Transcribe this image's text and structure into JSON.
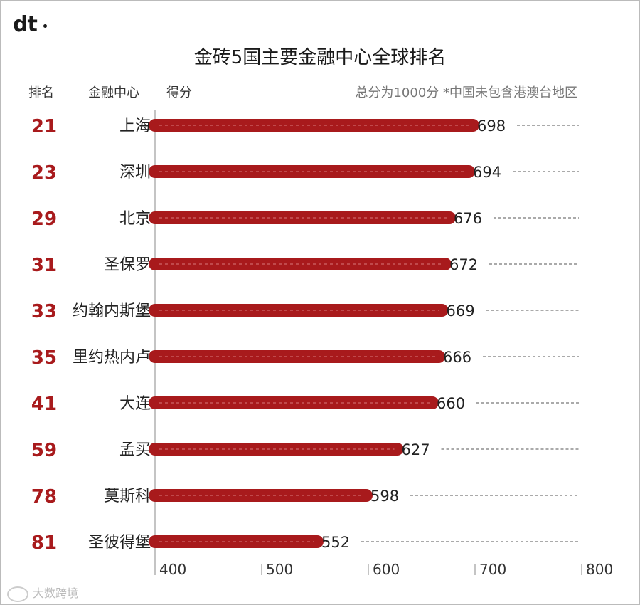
{
  "logo_text": "dt",
  "title": "金砖5国主要金融中心全球排名",
  "headers": {
    "rank": "排名",
    "center": "金融中心",
    "score": "得分",
    "note": "总分为1000分 *中国未包含港澳台地区"
  },
  "watermark": "大数跨境",
  "colors": {
    "bar": "#a81a1c",
    "rank_text": "#a81a1c",
    "dashed": "#555555"
  },
  "chart_data": {
    "type": "bar",
    "orientation": "horizontal",
    "title": "金砖5国主要金融中心全球排名",
    "categories": [
      "上海",
      "深圳",
      "北京",
      "圣保罗",
      "约翰内斯堡",
      "里约热内卢",
      "大连",
      "孟买",
      "莫斯科",
      "圣彼得堡"
    ],
    "ranks": [
      "21",
      "23",
      "29",
      "31",
      "33",
      "35",
      "41",
      "59",
      "78",
      "81"
    ],
    "values": [
      698,
      694,
      676,
      672,
      669,
      666,
      660,
      627,
      598,
      552
    ],
    "xlim": [
      400,
      800
    ],
    "ticks": [
      400,
      500,
      600,
      700,
      800
    ],
    "tick_labels": [
      "400",
      "500",
      "600",
      "700",
      "800"
    ],
    "grid": false,
    "data_labels": true
  }
}
